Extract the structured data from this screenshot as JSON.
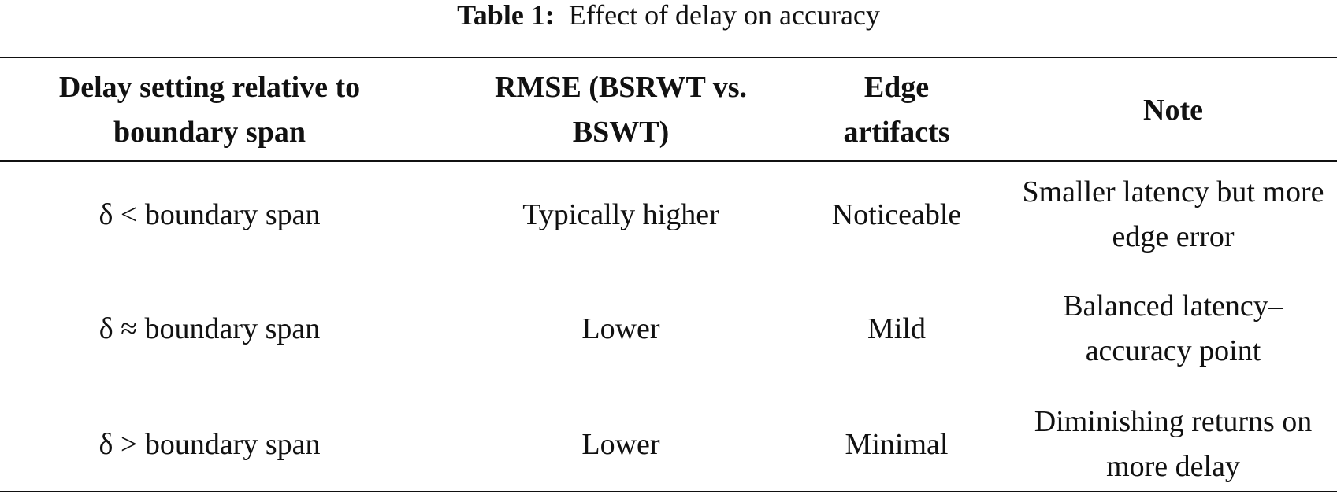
{
  "caption": {
    "label": "Table 1:",
    "text": "Effect of delay on accuracy"
  },
  "table": {
    "header": [
      "Delay setting relative to boundary span",
      "RMSE (BSRWT vs. BSWT)",
      "Edge artifacts",
      "Note"
    ],
    "rows": [
      [
        "δ < boundary span",
        "Typically higher",
        "Noticeable",
        "Smaller latency but more edge error"
      ],
      [
        "δ ≈ boundary span",
        "Lower",
        "Mild",
        "Balanced latency–accuracy point"
      ],
      [
        "δ > boundary span",
        "Lower",
        "Minimal",
        "Diminishing returns on more delay"
      ]
    ]
  }
}
